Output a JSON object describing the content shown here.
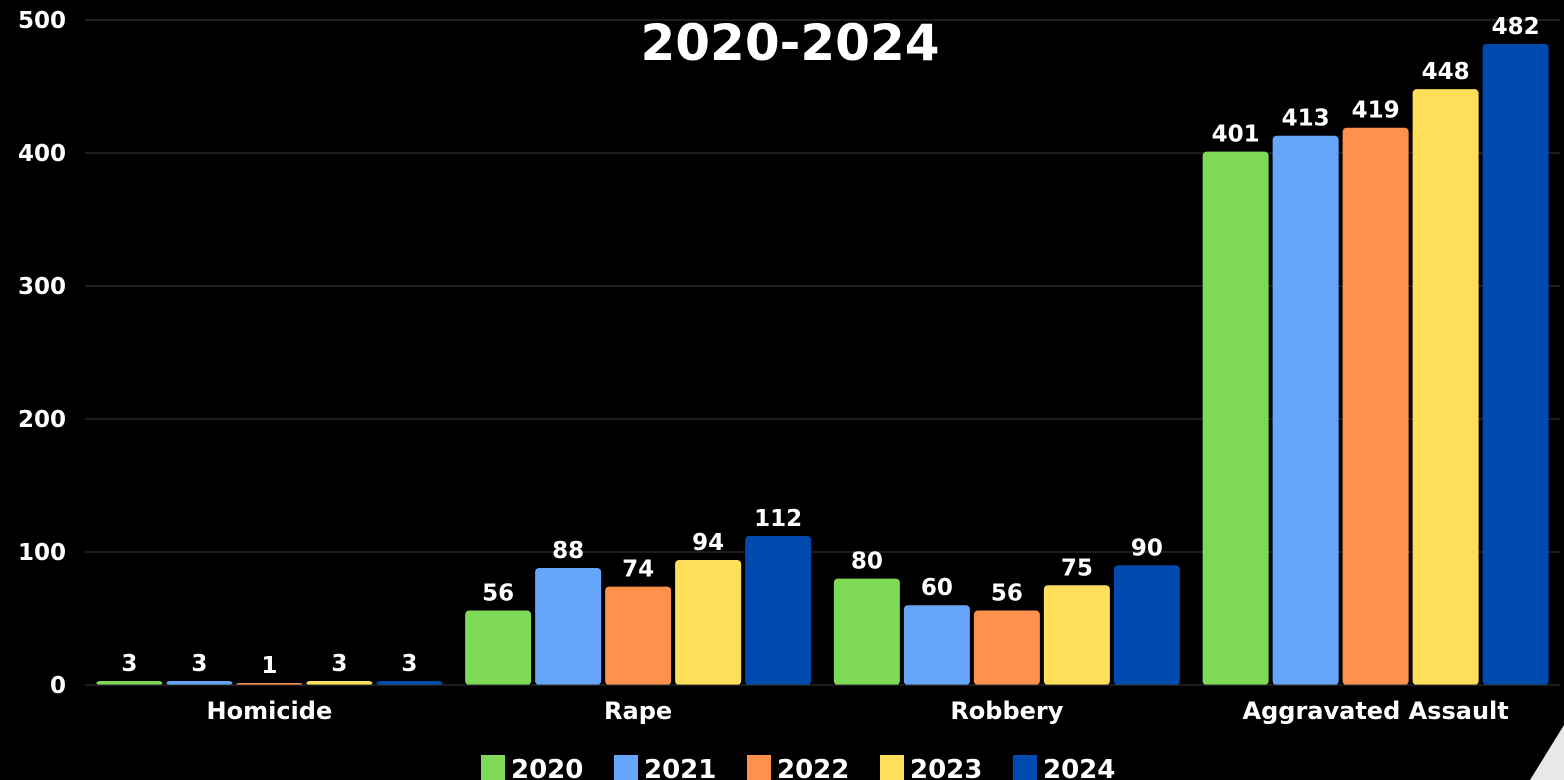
{
  "chart_data": {
    "type": "bar",
    "title": "2020-2024",
    "categories": [
      "Homicide",
      "Rape",
      "Robbery",
      "Aggravated Assault"
    ],
    "series": [
      {
        "name": "2020",
        "color": "#7ED957",
        "values": [
          3,
          56,
          80,
          401
        ]
      },
      {
        "name": "2021",
        "color": "#66A6FA",
        "values": [
          3,
          88,
          60,
          413
        ]
      },
      {
        "name": "2022",
        "color": "#FF914D",
        "values": [
          1,
          74,
          56,
          419
        ]
      },
      {
        "name": "2023",
        "color": "#FFDE59",
        "values": [
          3,
          94,
          75,
          448
        ]
      },
      {
        "name": "2024",
        "color": "#004AAD",
        "values": [
          3,
          112,
          90,
          482
        ]
      }
    ],
    "yticks": [
      0,
      100,
      200,
      300,
      400,
      500
    ],
    "ylim": [
      0,
      500
    ],
    "grid": true,
    "legend_position": "bottom",
    "xlabel": "",
    "ylabel": ""
  }
}
